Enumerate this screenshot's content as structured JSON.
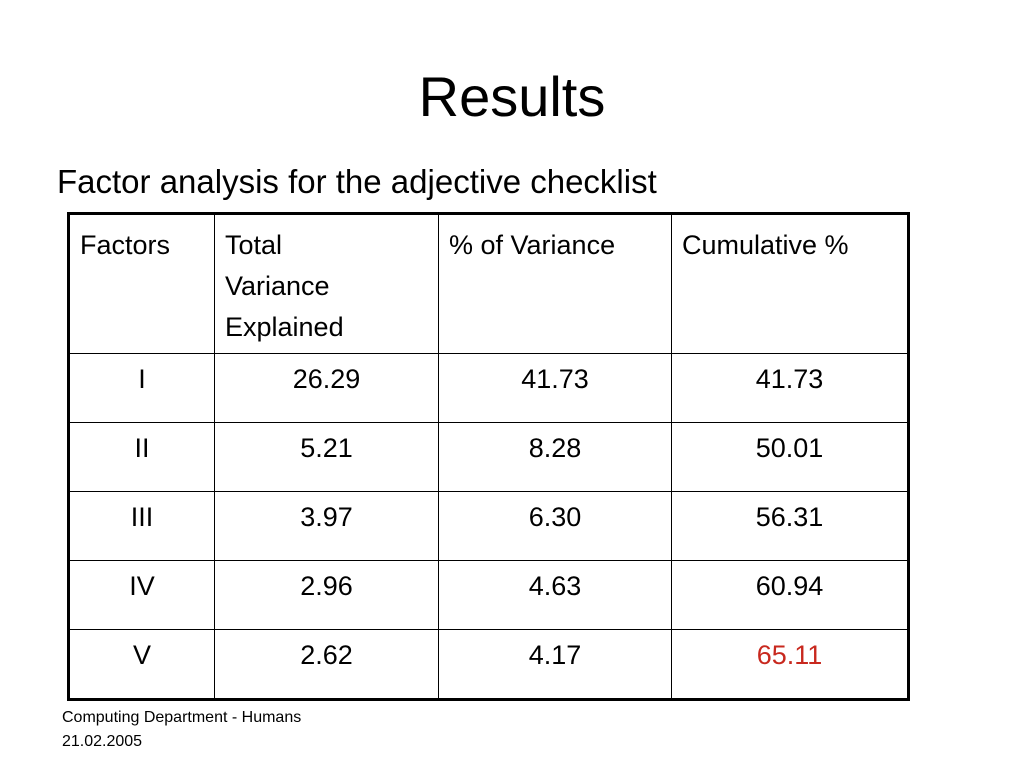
{
  "title": "Results",
  "subtitle": "Factor analysis for the adjective checklist",
  "table": {
    "header": [
      "Factors",
      "Total Variance Explained",
      "% of Variance",
      "Cumulative %"
    ],
    "rows": [
      [
        "I",
        "26.29",
        "41.73",
        "41.73"
      ],
      [
        "II",
        "5.21",
        "8.28",
        "50.01"
      ],
      [
        "III",
        "3.97",
        "6.30",
        "56.31"
      ],
      [
        "IV",
        "2.96",
        "4.63",
        "60.94"
      ],
      [
        "V",
        "2.62",
        "4.17",
        {
          "text": "65.11",
          "color": "#c8281e"
        }
      ]
    ]
  },
  "footer": [
    "Computing Department - Humans",
    "21.02.2005"
  ]
}
